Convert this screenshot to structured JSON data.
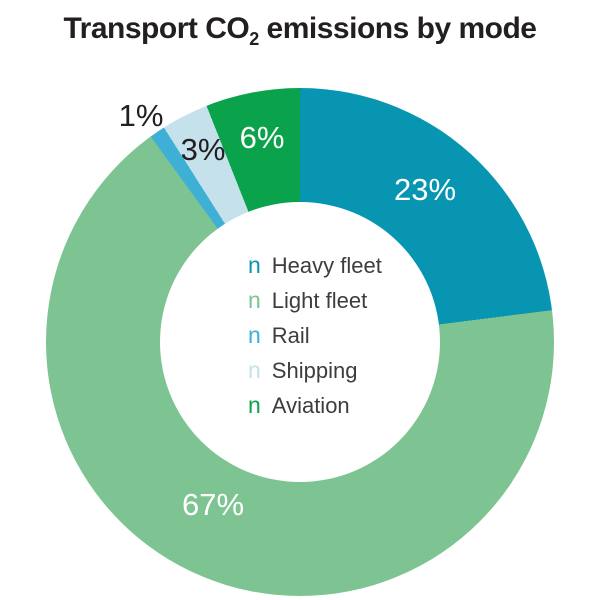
{
  "title": {
    "pre": "Transport CO",
    "sub": "2",
    "post": " emissions by mode"
  },
  "colors": {
    "background": "#ffffff",
    "title_text": "#231f20",
    "legend_text": "#3d3d3d",
    "donut_hole": "#ffffff"
  },
  "chart_data": {
    "type": "pie",
    "subtype": "donut",
    "title": "Transport CO₂ emissions by mode",
    "direction": "clockwise",
    "start_angle_deg": 0,
    "hole_ratio": 0.55,
    "legend_position": "center",
    "legend_marker_glyph": "n",
    "slices": [
      {
        "label": "Heavy fleet",
        "value": 23,
        "pct_label": "23%",
        "color": "#0895b2",
        "pct_label_color": "#ffffff"
      },
      {
        "label": "Light fleet",
        "value": 67,
        "pct_label": "67%",
        "color": "#7dc492",
        "pct_label_color": "#ffffff"
      },
      {
        "label": "Rail",
        "value": 1,
        "pct_label": "1%",
        "color": "#3fb0d5",
        "pct_label_color": "#231f20"
      },
      {
        "label": "Shipping",
        "value": 3,
        "pct_label": "3%",
        "color": "#c4e1ec",
        "pct_label_color": "#231f20"
      },
      {
        "label": "Aviation",
        "value": 6,
        "pct_label": "6%",
        "color": "#0aa34c",
        "pct_label_color": "#ffffff"
      }
    ]
  }
}
